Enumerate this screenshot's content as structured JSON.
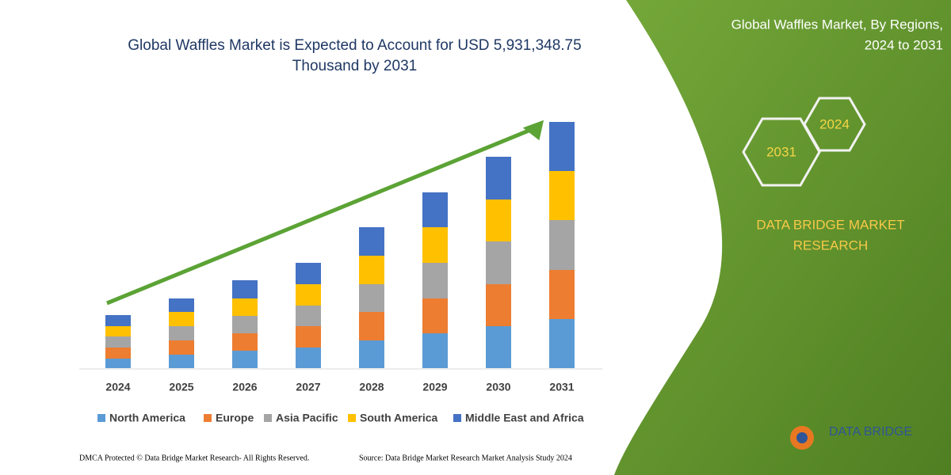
{
  "chart_data": {
    "type": "stacked-bar",
    "title": "Global Waffles Market is Expected to Account for USD 5,931,348.75 Thousand by 2031",
    "categories": [
      "2024",
      "2025",
      "2026",
      "2027",
      "2028",
      "2029",
      "2030",
      "2031"
    ],
    "series": [
      {
        "name": "North America",
        "color": "#5b9bd5",
        "values": [
          12,
          17,
          22,
          26,
          35,
          44,
          53,
          62
        ]
      },
      {
        "name": "Europe",
        "color": "#ed7d31",
        "values": [
          14,
          18,
          22,
          27,
          36,
          44,
          53,
          62
        ]
      },
      {
        "name": "Asia Pacific",
        "color": "#a5a5a5",
        "values": [
          14,
          18,
          22,
          26,
          35,
          45,
          54,
          63
        ]
      },
      {
        "name": "South America",
        "color": "#ffc000",
        "values": [
          13,
          18,
          22,
          27,
          36,
          45,
          53,
          62
        ]
      },
      {
        "name": "Middle East and Africa",
        "color": "#4472c4",
        "values": [
          14,
          17,
          23,
          27,
          36,
          44,
          54,
          62
        ]
      }
    ],
    "legend": "bottom"
  },
  "panel": {
    "title_lines": [
      "Global Waffles Market, By Regions,",
      "2024 to 2031"
    ],
    "hex_labels": [
      "2031",
      "2024"
    ],
    "brand_lines": [
      "DATA BRIDGE MARKET",
      "RESEARCH"
    ],
    "logo_text": "DATA BRIDGE"
  },
  "footer": {
    "left": "DMCA Protected © Data Bridge Market Research-  All Rights Reserved.",
    "right": "Source: Data Bridge Market Research  Market Analysis Study 2024"
  }
}
